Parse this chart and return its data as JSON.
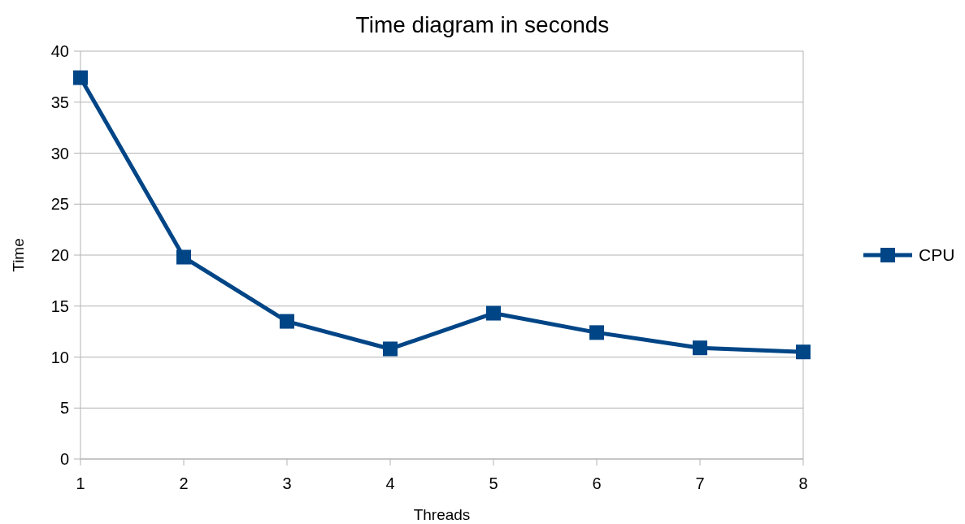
{
  "chart_data": {
    "type": "line",
    "title": "Time diagram in seconds",
    "xlabel": "Threads",
    "ylabel": "Time",
    "x": [
      1,
      2,
      3,
      4,
      5,
      6,
      7,
      8
    ],
    "series": [
      {
        "name": "CPU",
        "color": "#004586",
        "values": [
          37.4,
          19.8,
          13.5,
          10.8,
          14.3,
          12.4,
          10.9,
          10.5
        ]
      }
    ],
    "xlim": [
      1,
      8
    ],
    "xticks": [
      1,
      2,
      3,
      4,
      5,
      6,
      7,
      8
    ],
    "ylim": [
      0,
      40
    ],
    "yticks": [
      0,
      5,
      10,
      15,
      20,
      25,
      30,
      35,
      40
    ],
    "grid": "y",
    "legend": "right",
    "marker": "square",
    "line_style": "solid"
  }
}
